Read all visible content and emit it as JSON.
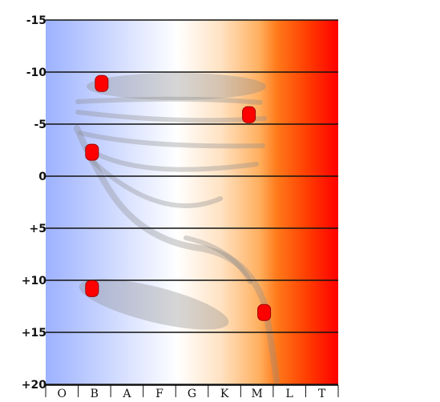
{
  "chart_data": {
    "type": "scatter",
    "title": "",
    "xlabel": "",
    "ylabel": "",
    "categories": [
      "O",
      "B",
      "A",
      "F",
      "G",
      "K",
      "M",
      "L",
      "T"
    ],
    "y_ticks": [
      "-15",
      "-10",
      "-5",
      "0",
      "+5",
      "+10",
      "+15",
      "+20"
    ],
    "ylim": [
      -15,
      20
    ],
    "y_inverted": true,
    "grid": "horizontal",
    "background": "spectral gradient blue to red",
    "colors": {
      "gradient": [
        "#9db2ff",
        "#cdd8ff",
        "#ffffff",
        "#ffe2c2",
        "#ffb060",
        "#ff7a1a",
        "#ff3a00",
        "#ff0000"
      ],
      "point": "#ff0000",
      "point_stroke": "#990000",
      "band": "#909090",
      "grid": "#111111"
    },
    "series": [
      {
        "points": [
          {
            "x": "B",
            "y": -8.9
          },
          {
            "x": "M",
            "y": -5.9
          },
          {
            "x": "B",
            "y": -2.3
          },
          {
            "x": "B",
            "y": 10.8
          },
          {
            "x": "M",
            "y": 13.1
          }
        ]
      }
    ]
  }
}
